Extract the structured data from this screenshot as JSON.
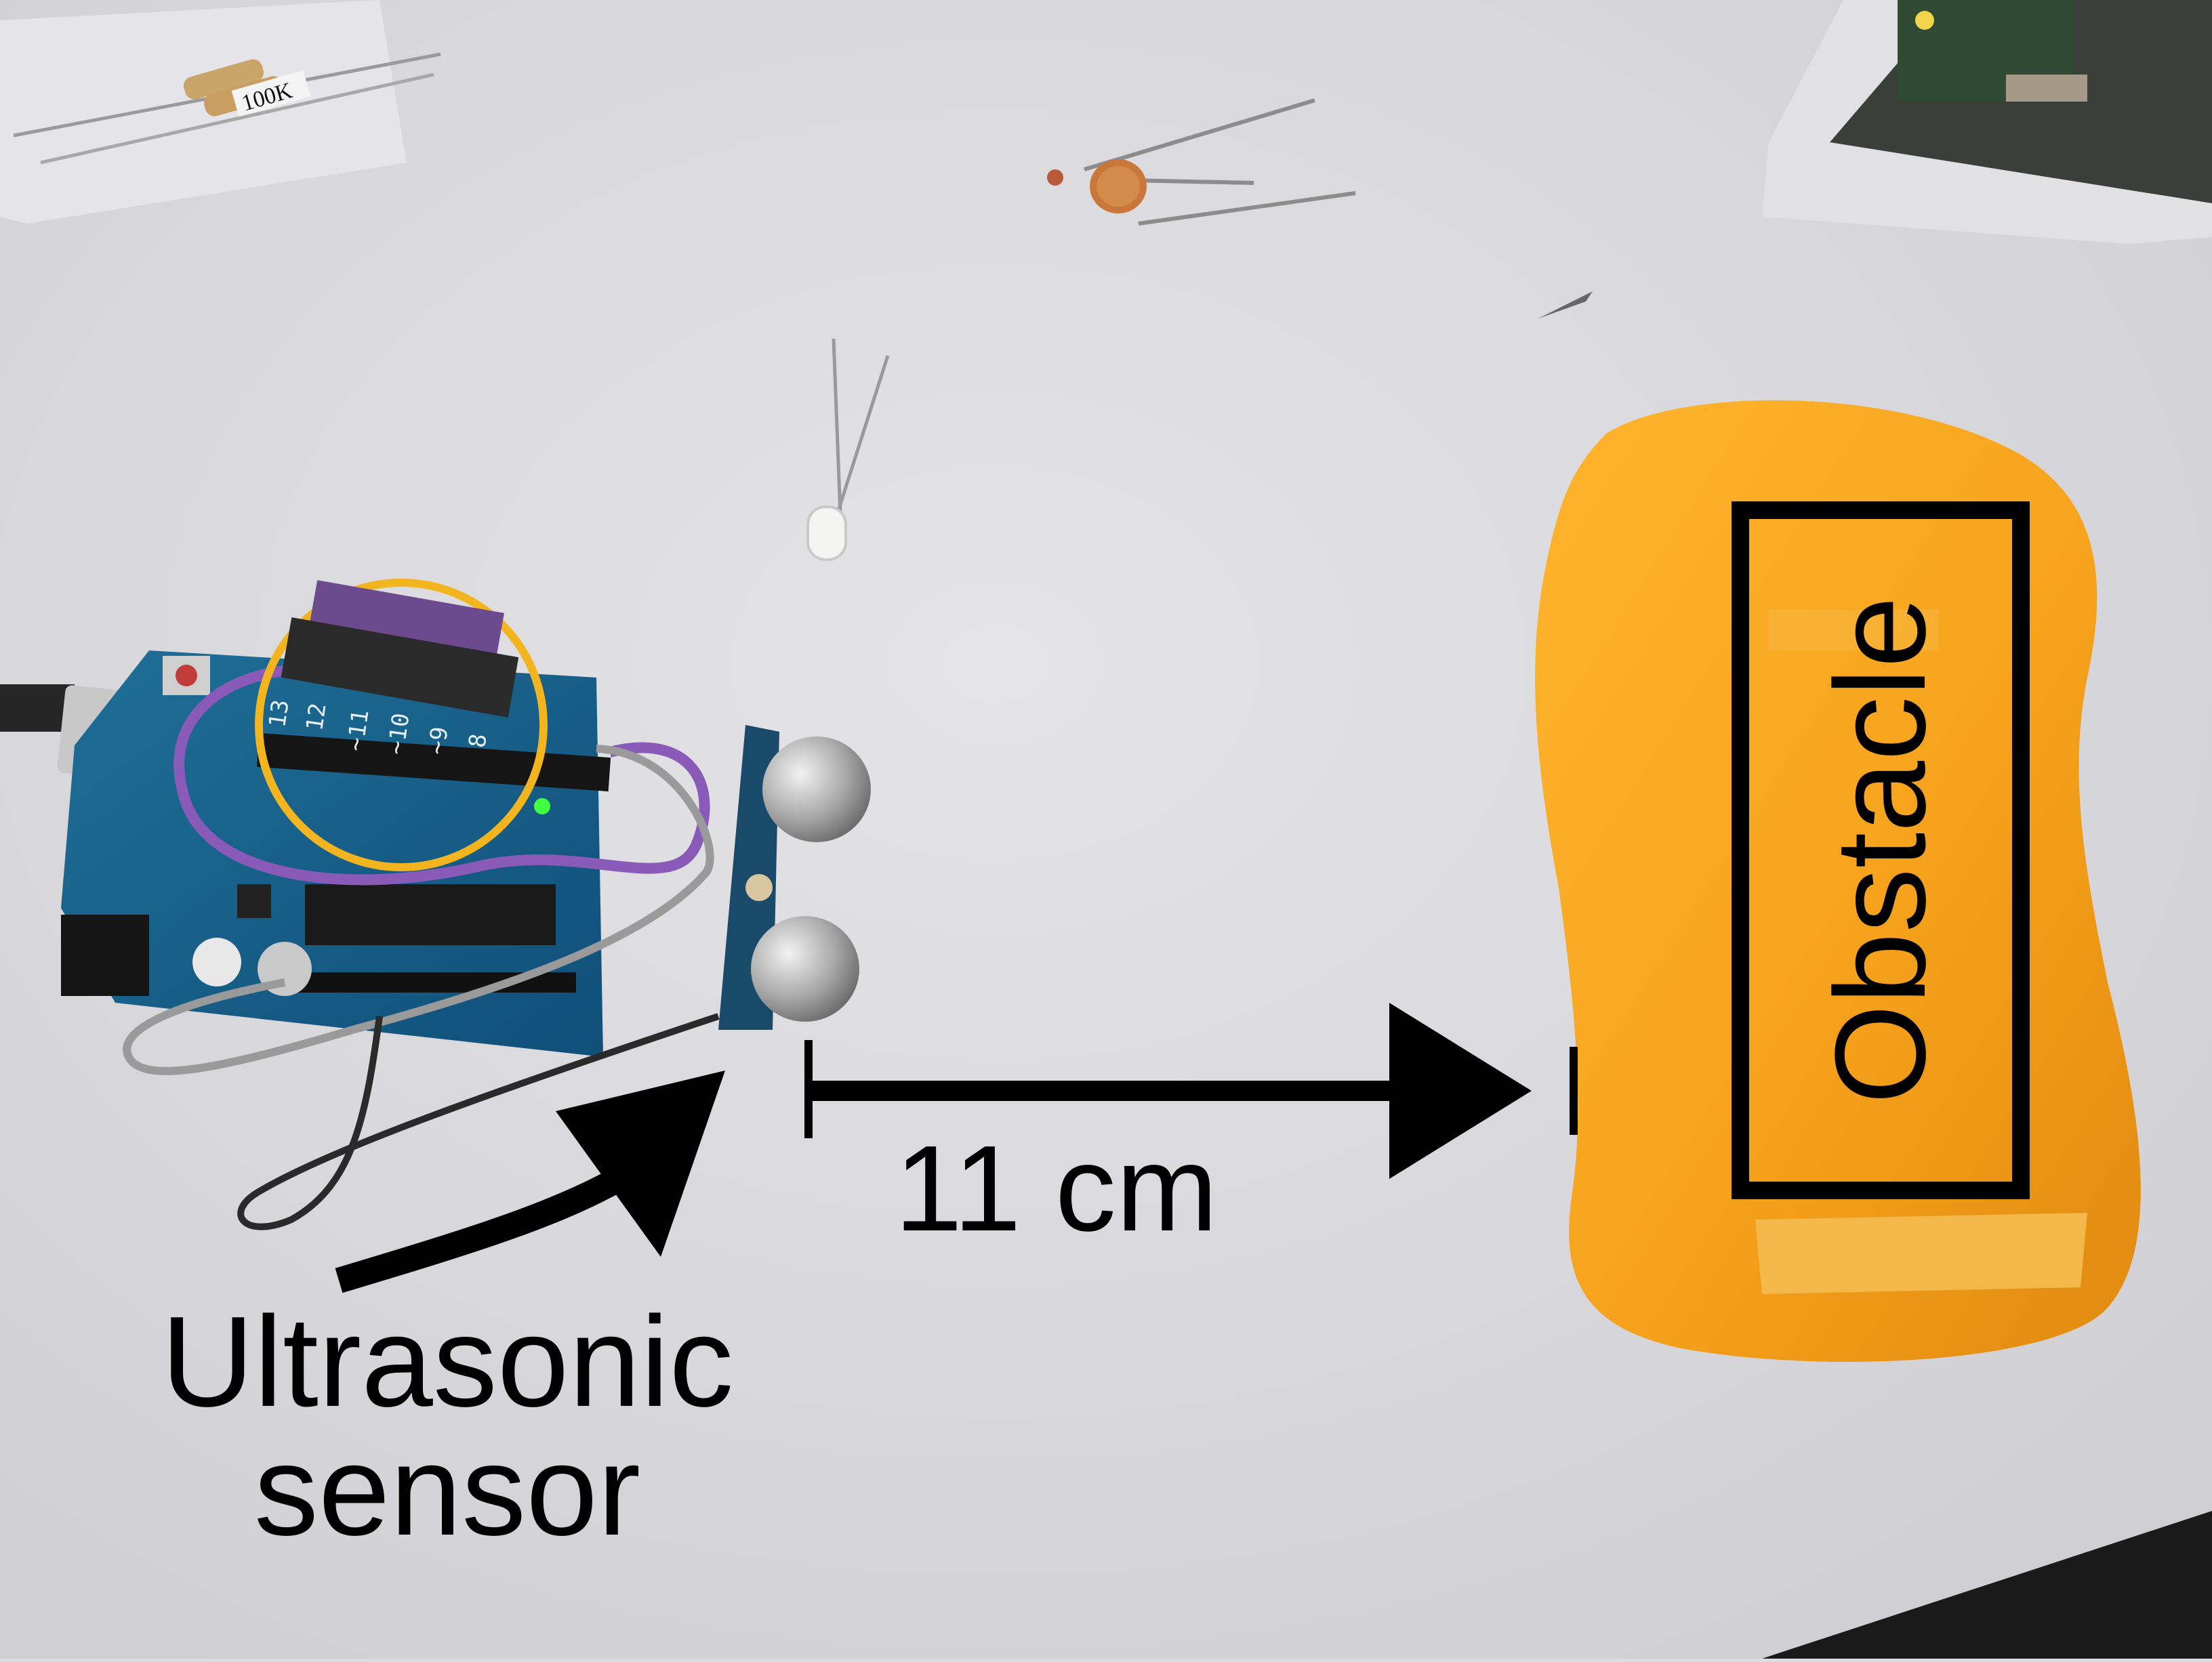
{
  "photo": {
    "background_color": "#dcdcdf",
    "objects": [
      "arduino-uno-board",
      "ultrasonic-sensor-module",
      "yellow-multimeter-case",
      "resistors-in-bag",
      "light-dependent-resistor",
      "white-led",
      "sensor-module-in-bag",
      "usb-cable",
      "jumper-wires"
    ]
  },
  "annotations": {
    "distance_label": "11 cm",
    "sensor_label_line1": "Ultrasonic",
    "sensor_label_line2": "sensor",
    "obstacle_label": "Obstacle",
    "highlight_circle_color": "#f2b41f",
    "annotation_color": "#000000"
  },
  "board_pin_labels": [
    "13",
    "12",
    "~11",
    "~10",
    "~9",
    "8"
  ],
  "resistor_tag": "100K"
}
